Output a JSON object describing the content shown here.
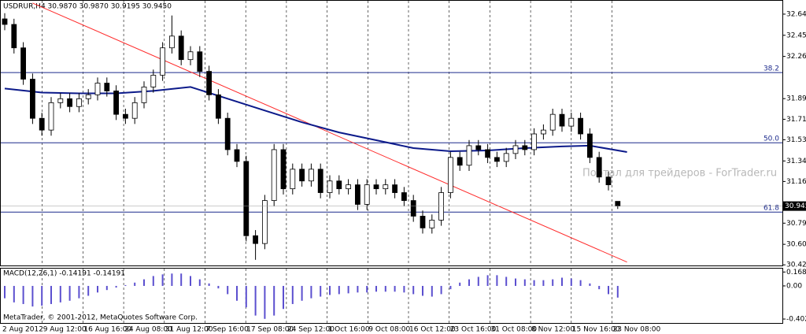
{
  "chart_data": {
    "type": "candlestick",
    "header": "USDRUR,H4  30.9870 30.9870 30.9195 30.9450",
    "watermark": "Портал для трейдеров - ForTrader.ru",
    "footer": "MetaTrader, © 2001-2012, MetaQuotes Software Corp.",
    "grid": true,
    "ylim": [
      30.42,
      32.76
    ],
    "yticks": [
      {
        "value": 32.642,
        "label": "32.6420"
      },
      {
        "value": 32.455,
        "label": "32.4550"
      },
      {
        "value": 32.268,
        "label": "32.2680"
      },
      {
        "value": 31.895,
        "label": "31.8950"
      },
      31.7125,
      {
        "value": 31.531,
        "label": "31.5310"
      },
      {
        "value": 31.344,
        "label": "31.3440"
      },
      31.1625,
      {
        "value": 30.794,
        "label": "30.7940"
      },
      {
        "value": 30.607,
        "label": "30.6070"
      },
      30.4255
    ],
    "last_price": {
      "value": 30.945,
      "label": "30.9450"
    },
    "x_labels": [
      "2 Aug 2012",
      "9 Aug 12:00",
      "16 Aug 16:00",
      "24 Aug 08:00",
      "31 Aug 12:00",
      "7 Sep 16:00",
      "17 Sep 08:00",
      "24 Sep 12:00",
      "1 Oct 16:00",
      "9 Oct 08:00",
      "16 Oct 12:00",
      "23 Oct 16:00",
      "31 Oct 08:00",
      "8 Nov 12:00",
      "15 Nov 16:00",
      "23 Nov 08:00"
    ],
    "ohlc": [
      [
        32.6,
        32.65,
        32.5,
        32.551
      ],
      [
        32.551,
        32.601,
        32.294,
        32.344
      ],
      [
        32.344,
        32.394,
        32.017,
        32.067
      ],
      [
        32.067,
        32.117,
        31.671,
        31.721
      ],
      [
        31.721,
        31.771,
        31.567,
        31.617
      ],
      [
        31.617,
        31.909,
        31.567,
        31.859
      ],
      [
        31.859,
        31.944,
        31.809,
        31.894
      ],
      [
        31.894,
        31.944,
        31.775,
        31.825
      ],
      [
        31.825,
        31.944,
        31.775,
        31.894
      ],
      [
        31.894,
        31.979,
        31.844,
        31.929
      ],
      [
        31.929,
        32.082,
        31.879,
        32.032
      ],
      [
        32.032,
        32.082,
        31.913,
        31.963
      ],
      [
        31.963,
        32.013,
        31.706,
        31.756
      ],
      [
        31.756,
        31.806,
        31.671,
        31.721
      ],
      [
        31.721,
        31.909,
        31.671,
        31.859
      ],
      [
        31.859,
        32.048,
        31.809,
        31.998
      ],
      [
        31.998,
        32.152,
        31.948,
        32.102
      ],
      [
        32.102,
        32.394,
        32.052,
        32.344
      ],
      [
        32.344,
        32.63,
        32.294,
        32.448
      ],
      [
        32.448,
        32.498,
        32.19,
        32.24
      ],
      [
        32.24,
        32.359,
        32.19,
        32.309
      ],
      [
        32.309,
        32.359,
        32.086,
        32.136
      ],
      [
        32.136,
        32.186,
        31.879,
        31.929
      ],
      [
        31.929,
        31.979,
        31.671,
        31.721
      ],
      [
        31.721,
        31.771,
        31.394,
        31.444
      ],
      [
        31.444,
        31.494,
        31.29,
        31.34
      ],
      [
        31.34,
        31.39,
        30.633,
        30.683
      ],
      [
        30.683,
        30.733,
        30.47,
        30.614
      ],
      [
        30.614,
        31.044,
        30.564,
        30.994
      ],
      [
        30.994,
        31.494,
        30.944,
        31.444
      ],
      [
        31.444,
        31.494,
        31.048,
        31.098
      ],
      [
        31.098,
        31.321,
        31.048,
        31.271
      ],
      [
        31.271,
        31.321,
        31.117,
        31.167
      ],
      [
        31.167,
        31.321,
        31.117,
        31.271
      ],
      [
        31.271,
        31.321,
        31.014,
        31.064
      ],
      [
        31.064,
        31.217,
        31.014,
        31.167
      ],
      [
        31.167,
        31.217,
        31.048,
        31.098
      ],
      [
        31.098,
        31.183,
        31.048,
        31.133
      ],
      [
        31.133,
        31.183,
        30.91,
        30.96
      ],
      [
        30.96,
        31.183,
        30.91,
        31.133
      ],
      [
        31.133,
        31.183,
        31.048,
        31.098
      ],
      [
        31.098,
        31.183,
        31.048,
        31.133
      ],
      [
        31.133,
        31.183,
        31.014,
        31.064
      ],
      [
        31.064,
        31.114,
        30.944,
        30.994
      ],
      [
        30.994,
        31.044,
        30.806,
        30.856
      ],
      [
        30.856,
        30.906,
        30.702,
        30.752
      ],
      [
        30.752,
        30.871,
        30.702,
        30.821
      ],
      [
        30.821,
        31.114,
        30.771,
        31.064
      ],
      [
        31.064,
        31.425,
        31.014,
        31.375
      ],
      [
        31.375,
        31.425,
        31.256,
        31.306
      ],
      [
        31.306,
        31.529,
        31.256,
        31.479
      ],
      [
        31.479,
        31.529,
        31.394,
        31.444
      ],
      [
        31.444,
        31.494,
        31.325,
        31.375
      ],
      [
        31.375,
        31.425,
        31.29,
        31.34
      ],
      [
        31.34,
        31.46,
        31.29,
        31.41
      ],
      [
        31.41,
        31.529,
        31.36,
        31.479
      ],
      [
        31.479,
        31.529,
        31.394,
        31.444
      ],
      [
        31.444,
        31.633,
        31.394,
        31.583
      ],
      [
        31.583,
        31.667,
        31.533,
        31.617
      ],
      [
        31.617,
        31.806,
        31.567,
        31.756
      ],
      [
        31.756,
        31.806,
        31.602,
        31.652
      ],
      [
        31.652,
        31.771,
        31.602,
        31.721
      ],
      [
        31.721,
        31.771,
        31.533,
        31.583
      ],
      [
        31.583,
        31.633,
        31.325,
        31.375
      ],
      [
        31.375,
        31.425,
        31.152,
        31.202
      ],
      [
        31.202,
        31.252,
        31.083,
        31.133
      ],
      [
        30.987,
        30.987,
        30.9195,
        30.945
      ]
    ],
    "ma": {
      "color": "#0c1a8a",
      "x": [
        0,
        4,
        8,
        12,
        16,
        20,
        24,
        28,
        32,
        36,
        40,
        44,
        48,
        52,
        56,
        60,
        63,
        67
      ],
      "values": [
        31.984,
        31.949,
        31.942,
        31.942,
        31.963,
        31.998,
        31.894,
        31.79,
        31.686,
        31.596,
        31.527,
        31.458,
        31.43,
        31.437,
        31.458,
        31.472,
        31.479,
        31.423
      ]
    },
    "trendline": {
      "color": "#ff2a2a",
      "x": [
        3,
        67
      ],
      "values": [
        32.74,
        30.45
      ]
    },
    "fib_levels": [
      {
        "label": "38.2",
        "value": 32.125
      },
      {
        "label": "50.0",
        "value": 31.505
      },
      {
        "label": "61.8",
        "value": 30.892
      }
    ],
    "fib_color": "#1c2a8c",
    "macd": {
      "label": "MACD(12,26,1) -0.14191 -0.14191",
      "color": "#5b4fcf",
      "ylim": [
        -0.45,
        0.21
      ],
      "yticks": [
        0.16891,
        {
          "value": 0,
          "label": "0.00"
        },
        -0.40235
      ],
      "values": [
        -0.15,
        -0.2,
        -0.22,
        -0.25,
        -0.24,
        -0.22,
        -0.2,
        -0.18,
        -0.15,
        -0.12,
        -0.08,
        -0.05,
        -0.02,
        0.01,
        0.04,
        0.08,
        0.12,
        0.14,
        0.15,
        0.15,
        0.12,
        0.08,
        0.03,
        -0.03,
        -0.1,
        -0.18,
        -0.26,
        -0.36,
        -0.4,
        -0.36,
        -0.28,
        -0.22,
        -0.18,
        -0.15,
        -0.13,
        -0.11,
        -0.1,
        -0.09,
        -0.08,
        -0.08,
        -0.07,
        -0.07,
        -0.07,
        -0.08,
        -0.1,
        -0.12,
        -0.13,
        -0.1,
        -0.04,
        0.04,
        0.08,
        0.11,
        0.13,
        0.13,
        0.11,
        0.09,
        0.08,
        0.07,
        0.07,
        0.08,
        0.1,
        0.09,
        0.07,
        0.03,
        -0.04,
        -0.1,
        -0.14191
      ]
    }
  }
}
